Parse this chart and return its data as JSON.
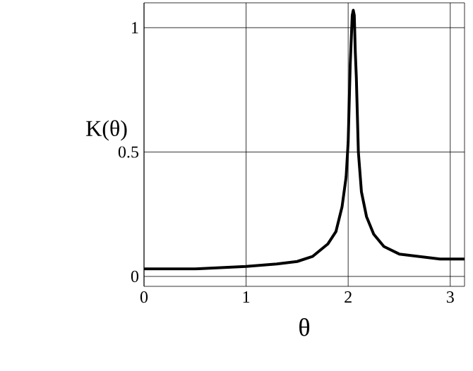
{
  "chart_data": {
    "type": "line",
    "xlabel": "θ",
    "ylabel": "K(θ)",
    "xlim": [
      0,
      3.14
    ],
    "ylim": [
      -0.04,
      1.1
    ],
    "xticks": [
      0,
      1,
      2,
      3
    ],
    "yticks": [
      0,
      0.5,
      1
    ],
    "grid": true,
    "series": [
      {
        "color": "#000000",
        "x": [
          0,
          0.5,
          1,
          1.3,
          1.5,
          1.65,
          1.8,
          1.88,
          1.94,
          1.98,
          2.0,
          2.02,
          2.04,
          2.05,
          2.06,
          2.07,
          2.08,
          2.1,
          2.13,
          2.18,
          2.25,
          2.35,
          2.5,
          2.7,
          2.9,
          3.14
        ],
        "values": [
          0.03,
          0.03,
          0.04,
          0.05,
          0.06,
          0.08,
          0.13,
          0.18,
          0.28,
          0.4,
          0.54,
          0.85,
          1.05,
          1.07,
          1.05,
          0.9,
          0.8,
          0.5,
          0.34,
          0.24,
          0.17,
          0.12,
          0.09,
          0.08,
          0.07,
          0.07
        ]
      }
    ]
  }
}
